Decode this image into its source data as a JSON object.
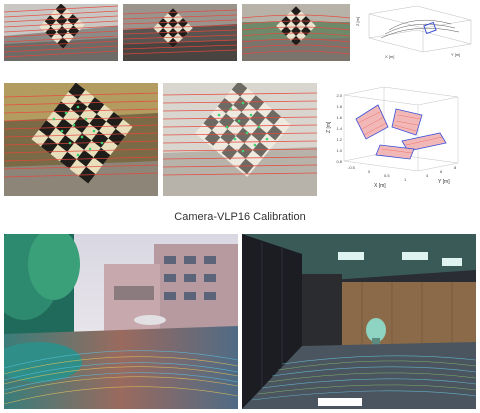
{
  "caption": "Camera-VLP16 Calibration",
  "plot_small": {
    "axis_z": "Z [m]",
    "axis_x": "X [m]",
    "axis_y": "Y [m]"
  },
  "plot_large": {
    "axis_z": "Z [m]",
    "axis_x": "X [m]",
    "axis_y": "Y [m]",
    "z_ticks": [
      "2.0",
      "1.8",
      "1.6",
      "1.4",
      "1.2",
      "1.0",
      "0.8"
    ],
    "x_ticks": [
      "-0.5",
      "0",
      "0.5",
      "1"
    ],
    "y_ticks": [
      "4",
      "6",
      "8"
    ]
  },
  "colors": {
    "lidar_line": "#e8463c",
    "corner_dot": "#3cd26e",
    "board_dark": "#1f1d1a",
    "board_light": "#e9e4cf",
    "plot_blue": "#3a4fd8"
  }
}
